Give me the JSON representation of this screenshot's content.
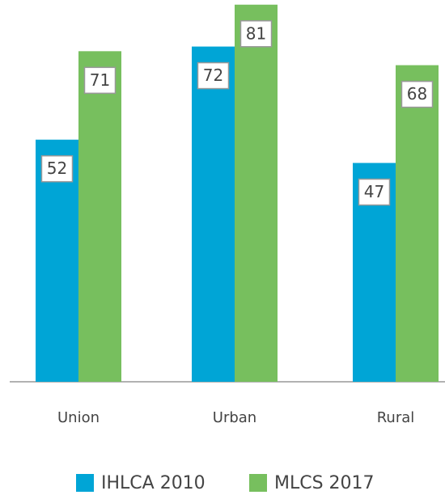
{
  "chart_data": {
    "type": "bar",
    "categories": [
      "Union",
      "Urban",
      "Rural"
    ],
    "series": [
      {
        "name": "IHLCA 2010",
        "color": "#00a5d6",
        "values": [
          52,
          72,
          47
        ]
      },
      {
        "name": "MLCS 2017",
        "color": "#77bf5e",
        "values": [
          71,
          81,
          68
        ]
      }
    ],
    "ylim": [
      0,
      82
    ]
  }
}
